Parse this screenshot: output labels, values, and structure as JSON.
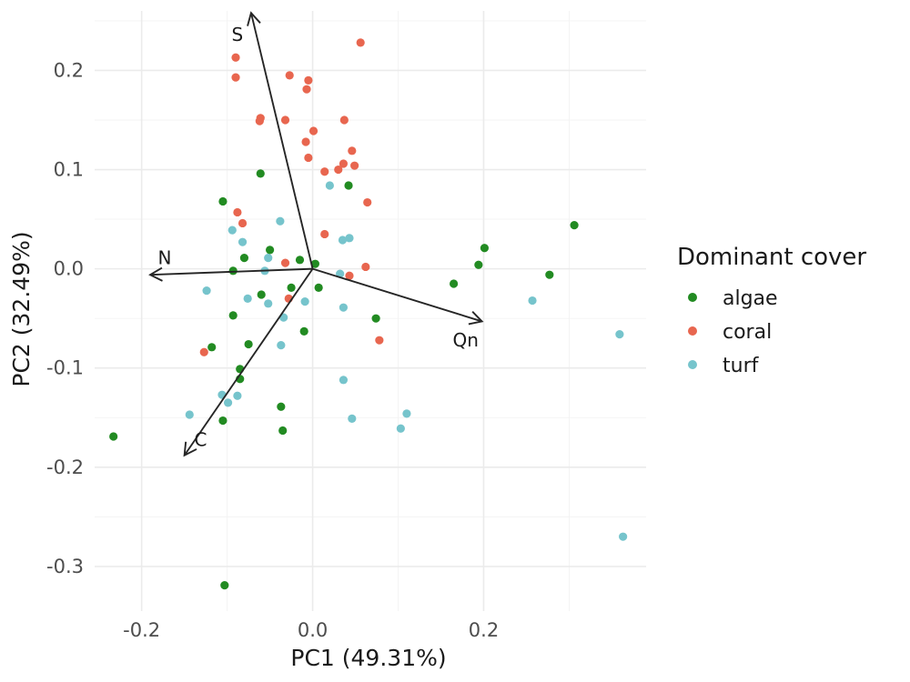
{
  "chart_data": {
    "type": "scatter",
    "title": "",
    "xlabel": "PC1 (49.31%)",
    "ylabel": "PC2 (32.49%)",
    "xlim": [
      -0.255,
      0.39
    ],
    "ylim": [
      -0.345,
      0.26
    ],
    "x_ticks": [
      -0.2,
      0.0,
      0.2
    ],
    "x_tick_labels": [
      "-0.2",
      "0.0",
      "0.2"
    ],
    "y_ticks": [
      -0.3,
      -0.2,
      -0.1,
      0.0,
      0.1,
      0.2
    ],
    "y_tick_labels": [
      "-0.3",
      "-0.2",
      "-0.1",
      "0.0",
      "0.1",
      "0.2"
    ],
    "grid": true,
    "legend": {
      "title": "Dominant cover",
      "position": "right",
      "entries": [
        {
          "name": "algae",
          "color": "#228B22"
        },
        {
          "name": "coral",
          "color": "#E8664F"
        },
        {
          "name": "turf",
          "color": "#76C4CC"
        }
      ]
    },
    "series": [
      {
        "name": "algae",
        "color": "#228B22",
        "points": [
          [
            -0.105,
            0.068
          ],
          [
            -0.061,
            0.096
          ],
          [
            0.042,
            0.084
          ],
          [
            -0.05,
            0.019
          ],
          [
            -0.093,
            -0.002
          ],
          [
            -0.08,
            0.011
          ],
          [
            -0.015,
            0.009
          ],
          [
            0.003,
            0.005
          ],
          [
            -0.025,
            -0.019
          ],
          [
            -0.06,
            -0.026
          ],
          [
            0.007,
            -0.019
          ],
          [
            -0.093,
            -0.047
          ],
          [
            -0.118,
            -0.079
          ],
          [
            -0.075,
            -0.076
          ],
          [
            -0.085,
            -0.101
          ],
          [
            -0.085,
            -0.111
          ],
          [
            -0.01,
            -0.063
          ],
          [
            0.074,
            -0.05
          ],
          [
            -0.037,
            -0.139
          ],
          [
            -0.035,
            -0.163
          ],
          [
            -0.105,
            -0.153
          ],
          [
            -0.233,
            -0.169
          ],
          [
            -0.103,
            -0.319
          ],
          [
            0.165,
            -0.015
          ],
          [
            0.194,
            0.004
          ],
          [
            0.201,
            0.021
          ],
          [
            0.277,
            -0.006
          ],
          [
            0.306,
            0.044
          ]
        ]
      },
      {
        "name": "coral",
        "color": "#E8664F",
        "points": [
          [
            0.056,
            0.228
          ],
          [
            -0.09,
            0.213
          ],
          [
            -0.09,
            0.193
          ],
          [
            -0.027,
            0.195
          ],
          [
            -0.005,
            0.19
          ],
          [
            -0.007,
            0.181
          ],
          [
            -0.062,
            0.149
          ],
          [
            -0.061,
            0.152
          ],
          [
            -0.032,
            0.15
          ],
          [
            0.037,
            0.15
          ],
          [
            0.001,
            0.139
          ],
          [
            -0.008,
            0.128
          ],
          [
            -0.005,
            0.112
          ],
          [
            0.046,
            0.119
          ],
          [
            0.036,
            0.106
          ],
          [
            0.049,
            0.104
          ],
          [
            0.03,
            0.1
          ],
          [
            0.014,
            0.098
          ],
          [
            0.064,
            0.067
          ],
          [
            -0.088,
            0.057
          ],
          [
            -0.082,
            0.046
          ],
          [
            0.014,
            0.035
          ],
          [
            -0.032,
            0.006
          ],
          [
            0.062,
            0.002
          ],
          [
            0.043,
            -0.007
          ],
          [
            -0.028,
            -0.03
          ],
          [
            0.078,
            -0.072
          ],
          [
            -0.127,
            -0.084
          ]
        ]
      },
      {
        "name": "turf",
        "color": "#76C4CC",
        "points": [
          [
            0.02,
            0.084
          ],
          [
            -0.038,
            0.048
          ],
          [
            -0.094,
            0.039
          ],
          [
            -0.082,
            0.027
          ],
          [
            0.043,
            0.031
          ],
          [
            0.035,
            0.029
          ],
          [
            -0.052,
            0.011
          ],
          [
            -0.056,
            -0.002
          ],
          [
            0.032,
            -0.005
          ],
          [
            -0.124,
            -0.022
          ],
          [
            -0.076,
            -0.03
          ],
          [
            -0.052,
            -0.035
          ],
          [
            -0.009,
            -0.033
          ],
          [
            0.036,
            -0.039
          ],
          [
            -0.034,
            -0.049
          ],
          [
            -0.037,
            -0.077
          ],
          [
            0.036,
            -0.112
          ],
          [
            -0.106,
            -0.127
          ],
          [
            -0.088,
            -0.128
          ],
          [
            -0.099,
            -0.135
          ],
          [
            -0.144,
            -0.147
          ],
          [
            0.046,
            -0.151
          ],
          [
            0.11,
            -0.146
          ],
          [
            0.103,
            -0.161
          ],
          [
            0.257,
            -0.032
          ],
          [
            0.359,
            -0.066
          ],
          [
            0.363,
            -0.27
          ]
        ]
      }
    ],
    "loadings": [
      {
        "name": "S",
        "x": -0.072,
        "y": 0.258,
        "label_x": -0.088,
        "label_y": 0.236
      },
      {
        "name": "N",
        "x": -0.19,
        "y": -0.006,
        "label_x": -0.173,
        "label_y": 0.011
      },
      {
        "name": "Qn",
        "x": 0.198,
        "y": -0.053,
        "label_x": 0.179,
        "label_y": -0.072
      },
      {
        "name": "C",
        "x": -0.15,
        "y": -0.188,
        "label_x": -0.131,
        "label_y": -0.172
      }
    ]
  }
}
